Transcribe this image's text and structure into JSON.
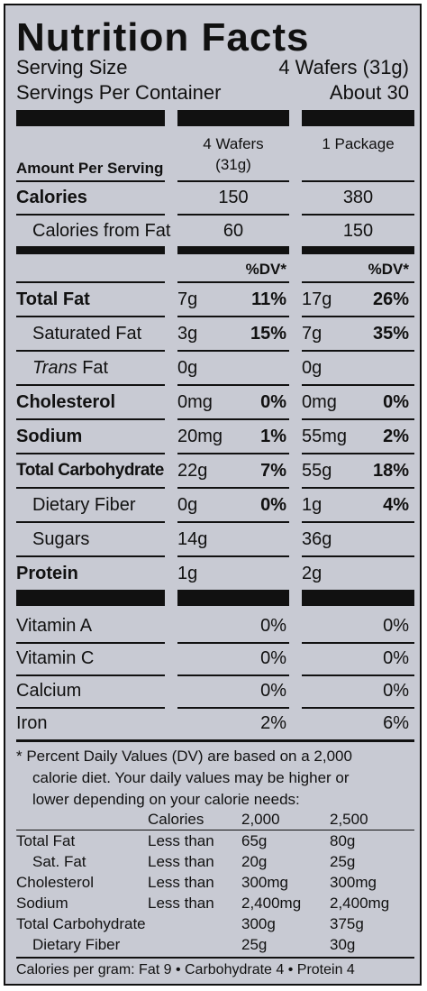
{
  "title": "Nutrition Facts",
  "serving_size": {
    "label": "Serving Size",
    "value": "4 Wafers (31g)"
  },
  "servings_per_container": {
    "label": "Servings Per Container",
    "value": "About 30"
  },
  "columns": {
    "col1_line1": "4 Wafers",
    "col1_line2": "(31g)",
    "col2": "1 Package"
  },
  "amount_per_serving": "Amount Per Serving",
  "calories": {
    "label": "Calories",
    "col1": "150",
    "col2": "380"
  },
  "calories_from_fat": {
    "label": "Calories from Fat",
    "col1": "60",
    "col2": "150"
  },
  "dv_header": "%DV*",
  "nutrients": [
    {
      "label": "Total Fat",
      "bold": true,
      "amt1": "7g",
      "dv1": "11%",
      "amt2": "17g",
      "dv2": "26%"
    },
    {
      "label": "Saturated Fat",
      "bold": false,
      "amt1": "3g",
      "dv1": "15%",
      "amt2": "7g",
      "dv2": "35%"
    },
    {
      "label_italic": "Trans",
      "label": "Fat",
      "bold": false,
      "amt1": "0g",
      "dv1": "",
      "amt2": "0g",
      "dv2": ""
    },
    {
      "label": "Cholesterol",
      "bold": true,
      "amt1": "0mg",
      "dv1": "0%",
      "amt2": "0mg",
      "dv2": "0%"
    },
    {
      "label": "Sodium",
      "bold": true,
      "amt1": "20mg",
      "dv1": "1%",
      "amt2": "55mg",
      "dv2": "2%"
    },
    {
      "label": "Total Carbohydrate",
      "bold": true,
      "amt1": "22g",
      "dv1": "7%",
      "amt2": "55g",
      "dv2": "18%"
    },
    {
      "label": "Dietary Fiber",
      "bold": false,
      "amt1": "0g",
      "dv1": "0%",
      "amt2": "1g",
      "dv2": "4%"
    },
    {
      "label": "Sugars",
      "bold": false,
      "amt1": "14g",
      "dv1": "",
      "amt2": "36g",
      "dv2": ""
    },
    {
      "label": "Protein",
      "bold": true,
      "amt1": "1g",
      "dv1": "",
      "amt2": "2g",
      "dv2": ""
    }
  ],
  "vitamins": [
    {
      "label": "Vitamin A",
      "v1": "0%",
      "v2": "0%"
    },
    {
      "label": "Vitamin C",
      "v1": "0%",
      "v2": "0%"
    },
    {
      "label": "Calcium",
      "v1": "0%",
      "v2": "0%"
    },
    {
      "label": "Iron",
      "v1": "2%",
      "v2": "6%"
    }
  ],
  "footnote": [
    "* Percent Daily Values (DV) are based on a 2,000",
    "calorie diet. Your daily values may be higher or",
    "lower depending on your calorie needs:"
  ],
  "dv_table": {
    "header": [
      "Calories",
      "2,000",
      "2,500"
    ],
    "rows": [
      [
        "Total Fat",
        "Less than",
        "65g",
        "80g"
      ],
      [
        "Sat. Fat",
        "Less than",
        "20g",
        "25g"
      ],
      [
        "Cholesterol",
        "Less than",
        "300mg",
        "300mg"
      ],
      [
        "Sodium",
        "Less than",
        "2,400mg",
        "2,400mg"
      ],
      [
        "Total Carbohydrate",
        "",
        "300g",
        "375g"
      ],
      [
        "Dietary Fiber",
        "",
        "25g",
        "30g"
      ]
    ]
  },
  "calories_per_gram": "Calories per gram: Fat 9 • Carbohydrate 4 • Protein 4"
}
